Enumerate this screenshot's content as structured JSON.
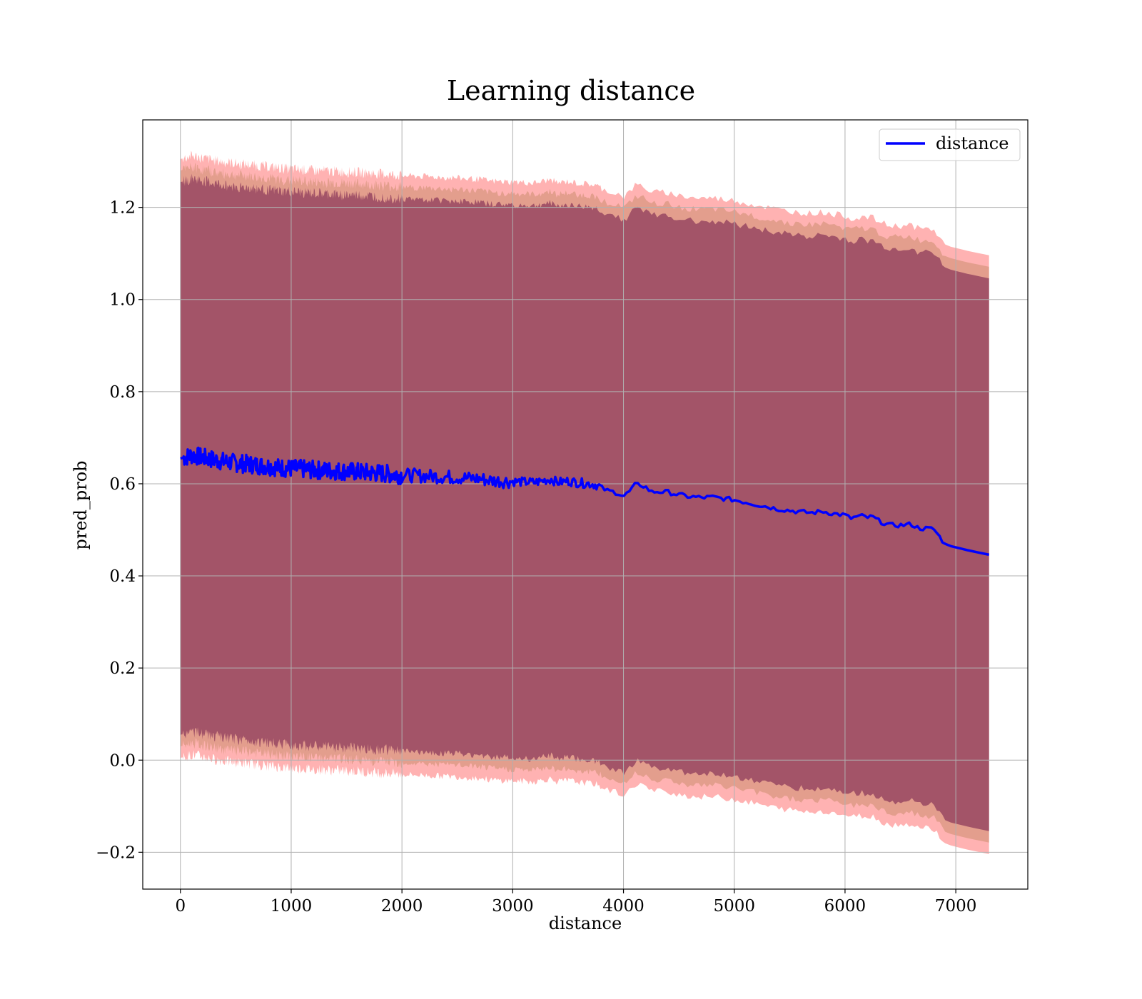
{
  "chart_data": {
    "type": "line",
    "title": "Learning distance",
    "xlabel": "distance",
    "ylabel": "pred_prob",
    "xlim": [
      -340,
      7650
    ],
    "ylim": [
      -0.28,
      1.39
    ],
    "xticks": [
      0,
      1000,
      2000,
      3000,
      4000,
      5000,
      6000,
      7000
    ],
    "xtick_labels": [
      "0",
      "1000",
      "2000",
      "3000",
      "4000",
      "5000",
      "6000",
      "7000"
    ],
    "yticks": [
      -0.2,
      0.0,
      0.2,
      0.4,
      0.6,
      0.8,
      1.0,
      1.2
    ],
    "ytick_labels": [
      "−0.2",
      "0.0",
      "0.2",
      "0.4",
      "0.6",
      "0.8",
      "1.0",
      "1.2"
    ],
    "grid": true,
    "legend_position": "top-right",
    "colors": {
      "line": "#0000ff",
      "band_outer": "#ff0000",
      "band_middle": "#9a6a30",
      "band_inner": "#70184a",
      "grid": "#b0b0b0"
    },
    "series": [
      {
        "name": "distance",
        "x": [
          0,
          50,
          100,
          150,
          200,
          250,
          300,
          400,
          500,
          600,
          700,
          800,
          900,
          1000,
          1100,
          1200,
          1300,
          1400,
          1500,
          1600,
          1700,
          1800,
          1900,
          2000,
          2100,
          2200,
          2300,
          2400,
          2500,
          2600,
          2700,
          2800,
          2900,
          3000,
          3100,
          3200,
          3300,
          3350,
          3400,
          3500,
          3600,
          3700,
          3750,
          3800,
          3850,
          3900,
          3950,
          4000,
          4050,
          4100,
          4150,
          4200,
          4250,
          4300,
          4400,
          4500,
          4600,
          4700,
          4800,
          4900,
          5000,
          5100,
          5200,
          5300,
          5400,
          5500,
          5600,
          5700,
          5800,
          5900,
          6000,
          6050,
          6100,
          6150,
          6200,
          6250,
          6300,
          6400,
          6500,
          6600,
          6650,
          6700,
          6800,
          6900,
          6950,
          7100,
          7300
        ],
        "y": [
          0.655,
          0.658,
          0.662,
          0.66,
          0.657,
          0.655,
          0.652,
          0.648,
          0.645,
          0.643,
          0.64,
          0.638,
          0.635,
          0.633,
          0.632,
          0.63,
          0.629,
          0.628,
          0.627,
          0.626,
          0.624,
          0.623,
          0.621,
          0.619,
          0.618,
          0.617,
          0.616,
          0.615,
          0.614,
          0.612,
          0.611,
          0.607,
          0.606,
          0.605,
          0.604,
          0.603,
          0.608,
          0.61,
          0.603,
          0.606,
          0.602,
          0.6,
          0.598,
          0.592,
          0.585,
          0.583,
          0.58,
          0.573,
          0.582,
          0.597,
          0.598,
          0.593,
          0.582,
          0.583,
          0.582,
          0.576,
          0.572,
          0.57,
          0.571,
          0.568,
          0.565,
          0.56,
          0.555,
          0.55,
          0.545,
          0.542,
          0.539,
          0.537,
          0.54,
          0.535,
          0.532,
          0.525,
          0.528,
          0.53,
          0.527,
          0.528,
          0.52,
          0.51,
          0.51,
          0.512,
          0.505,
          0.503,
          0.502,
          0.47,
          0.465,
          0.456,
          0.446
        ]
      }
    ],
    "bands": [
      {
        "label": "",
        "half_width": 0.65,
        "alpha": 0.3,
        "color_key": "band_outer"
      },
      {
        "label": "",
        "half_width": 0.625,
        "alpha": 0.28,
        "color_key": "band_middle"
      },
      {
        "label": "",
        "half_width": 0.6,
        "alpha": 0.55,
        "color_key": "band_inner"
      }
    ],
    "noise": {
      "line_amplitude": [
        0.02,
        0.015,
        0.01,
        0.005
      ],
      "band_amplitude": 0.012
    }
  }
}
